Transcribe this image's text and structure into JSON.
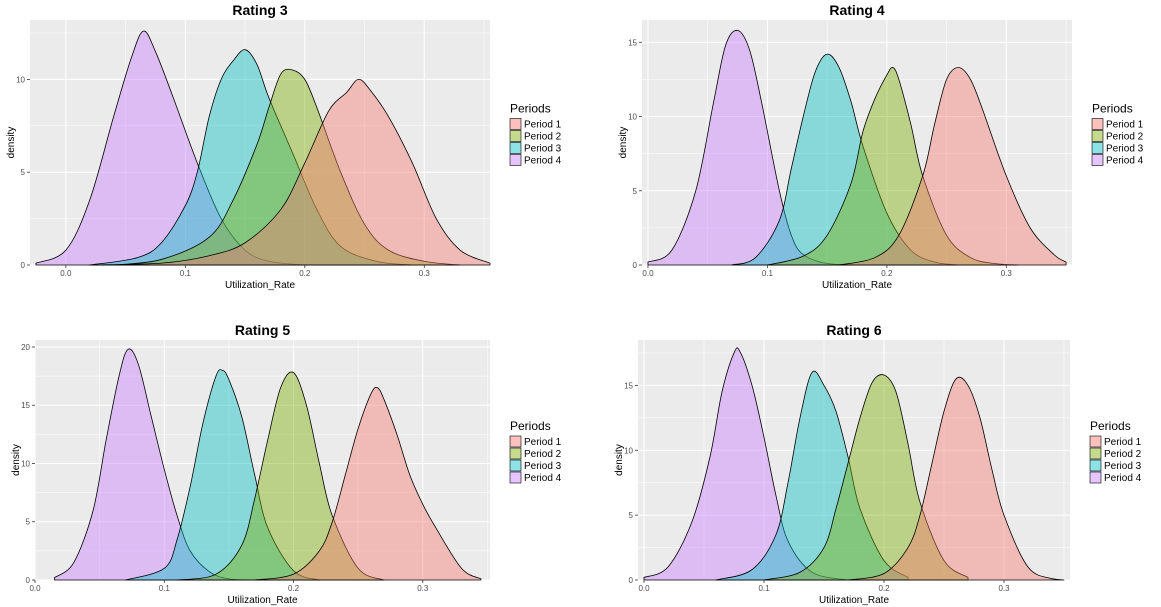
{
  "legend": {
    "title": "Periods",
    "items": [
      "Period 1",
      "Period 2",
      "Period 3",
      "Period 4"
    ]
  },
  "colors": {
    "Period 1": "#F8766D",
    "Period 2": "#7CAE00",
    "Period 3": "#00BFC4",
    "Period 4": "#C77CFF",
    "panel_bg": "#EBEBEB",
    "grid": "#FFFFFF"
  },
  "chart_data": [
    {
      "type": "area",
      "title": "Rating 3",
      "xlabel": "Utilization_Rate",
      "ylabel": "density",
      "xlim": [
        -0.03,
        0.355
      ],
      "ylim": [
        0,
        13.2
      ],
      "x_ticks": [
        0.0,
        0.1,
        0.2,
        0.3
      ],
      "x_tick_labels": [
        "0.0",
        "0.1",
        "0.2",
        "0.3"
      ],
      "y_ticks": [
        0,
        5,
        10
      ],
      "y_tick_labels": [
        "0",
        "5",
        "10"
      ],
      "series": [
        {
          "name": "Period 1",
          "x": [
            0.02,
            0.08,
            0.12,
            0.15,
            0.18,
            0.2,
            0.22,
            0.235,
            0.245,
            0.255,
            0.27,
            0.29,
            0.31,
            0.33,
            0.355
          ],
          "y": [
            0,
            0.1,
            0.5,
            1.2,
            3.0,
            5.5,
            8.3,
            9.3,
            10.0,
            9.4,
            8.0,
            5.5,
            2.5,
            0.8,
            0.1
          ]
        },
        {
          "name": "Period 2",
          "x": [
            0.04,
            0.08,
            0.12,
            0.14,
            0.16,
            0.17,
            0.18,
            0.19,
            0.2,
            0.21,
            0.23,
            0.25,
            0.27,
            0.3,
            0.33
          ],
          "y": [
            0,
            0.3,
            1.5,
            3.5,
            6.5,
            8.5,
            10.3,
            10.5,
            10.0,
            8.5,
            5.0,
            2.2,
            0.8,
            0.2,
            0
          ]
        },
        {
          "name": "Period 3",
          "x": [
            0.02,
            0.06,
            0.08,
            0.1,
            0.11,
            0.12,
            0.13,
            0.14,
            0.15,
            0.16,
            0.17,
            0.19,
            0.21,
            0.23,
            0.26,
            0.29
          ],
          "y": [
            0,
            0.4,
            1.2,
            3.2,
            5.0,
            8.0,
            10.0,
            11.0,
            11.6,
            10.8,
            9.0,
            6.0,
            3.0,
            1.0,
            0.2,
            0
          ]
        },
        {
          "name": "Period 4",
          "x": [
            -0.025,
            0.0,
            0.02,
            0.04,
            0.055,
            0.065,
            0.075,
            0.09,
            0.11,
            0.13,
            0.15,
            0.17,
            0.2
          ],
          "y": [
            0.1,
            0.8,
            3.5,
            8.0,
            11.2,
            12.6,
            11.5,
            9.0,
            5.5,
            2.5,
            0.8,
            0.2,
            0
          ]
        }
      ]
    },
    {
      "type": "area",
      "title": "Rating 4",
      "xlabel": "Utilization_Rate",
      "ylabel": "density",
      "xlim": [
        -0.005,
        0.355
      ],
      "ylim": [
        0,
        16.5
      ],
      "x_ticks": [
        0.0,
        0.1,
        0.2,
        0.3
      ],
      "x_tick_labels": [
        "0.0",
        "0.1",
        "0.2",
        "0.3"
      ],
      "y_ticks": [
        0,
        5,
        10,
        15
      ],
      "y_tick_labels": [
        "0",
        "5",
        "10",
        "15"
      ],
      "series": [
        {
          "name": "Period 1",
          "x": [
            0.16,
            0.19,
            0.21,
            0.23,
            0.24,
            0.25,
            0.26,
            0.27,
            0.28,
            0.3,
            0.32,
            0.34,
            0.35
          ],
          "y": [
            0,
            0.5,
            2.0,
            6.0,
            9.5,
            12.5,
            13.3,
            12.5,
            10.5,
            6.0,
            2.5,
            0.7,
            0.2
          ]
        },
        {
          "name": "Period 2",
          "x": [
            0.1,
            0.13,
            0.15,
            0.17,
            0.18,
            0.19,
            0.2,
            0.205,
            0.21,
            0.22,
            0.23,
            0.25,
            0.27,
            0.29,
            0.31
          ],
          "y": [
            0,
            0.6,
            2.0,
            5.5,
            9.0,
            11.2,
            12.8,
            13.3,
            12.5,
            9.5,
            6.0,
            2.0,
            0.5,
            0.1,
            0
          ]
        },
        {
          "name": "Period 3",
          "x": [
            0.07,
            0.09,
            0.11,
            0.12,
            0.13,
            0.14,
            0.15,
            0.16,
            0.17,
            0.18,
            0.2,
            0.22,
            0.24,
            0.26
          ],
          "y": [
            0,
            0.5,
            3.0,
            6.5,
            10.0,
            13.0,
            14.2,
            13.3,
            11.0,
            8.0,
            3.5,
            1.0,
            0.2,
            0
          ]
        },
        {
          "name": "Period 4",
          "x": [
            0.0,
            0.02,
            0.04,
            0.055,
            0.065,
            0.075,
            0.085,
            0.095,
            0.11,
            0.12,
            0.13,
            0.15,
            0.18
          ],
          "y": [
            0.2,
            1.0,
            5.0,
            11.0,
            14.8,
            15.8,
            14.5,
            11.0,
            5.0,
            2.0,
            0.7,
            0.1,
            0
          ]
        }
      ]
    },
    {
      "type": "area",
      "title": "Rating 5",
      "xlabel": "Utilization_Rate",
      "ylabel": "density",
      "xlim": [
        0.0,
        0.352
      ],
      "ylim": [
        0,
        20.6
      ],
      "x_ticks": [
        0.0,
        0.1,
        0.2,
        0.3
      ],
      "x_tick_labels": [
        "0.0",
        "0.1",
        "0.2",
        "0.3"
      ],
      "y_ticks": [
        0,
        5,
        10,
        15,
        20
      ],
      "y_tick_labels": [
        "0",
        "5",
        "10",
        "15",
        "20"
      ],
      "series": [
        {
          "name": "Period 1",
          "x": [
            0.17,
            0.2,
            0.22,
            0.23,
            0.24,
            0.25,
            0.26,
            0.265,
            0.27,
            0.28,
            0.29,
            0.3,
            0.31,
            0.33,
            0.345
          ],
          "y": [
            0,
            0.5,
            2.5,
            5.0,
            9.0,
            13.0,
            16.0,
            16.5,
            15.5,
            12.5,
            9.0,
            6.5,
            4.5,
            1.0,
            0.1
          ]
        },
        {
          "name": "Period 2",
          "x": [
            0.11,
            0.14,
            0.16,
            0.17,
            0.18,
            0.19,
            0.2,
            0.21,
            0.22,
            0.23,
            0.25,
            0.27
          ],
          "y": [
            0,
            0.5,
            3.0,
            7.0,
            12.0,
            16.5,
            17.8,
            15.0,
            10.0,
            5.5,
            1.0,
            0
          ]
        },
        {
          "name": "Period 3",
          "x": [
            0.07,
            0.1,
            0.11,
            0.12,
            0.13,
            0.14,
            0.145,
            0.15,
            0.16,
            0.17,
            0.18,
            0.2,
            0.22
          ],
          "y": [
            0,
            1.0,
            3.5,
            8.0,
            13.5,
            17.5,
            18.0,
            17.2,
            14.0,
            9.0,
            4.5,
            0.8,
            0
          ]
        },
        {
          "name": "Period 4",
          "x": [
            0.015,
            0.03,
            0.045,
            0.055,
            0.065,
            0.072,
            0.08,
            0.09,
            0.1,
            0.11,
            0.12,
            0.135,
            0.15,
            0.17
          ],
          "y": [
            0.2,
            1.5,
            6.0,
            12.0,
            17.5,
            19.8,
            18.5,
            14.0,
            9.5,
            5.5,
            2.5,
            0.7,
            0.1,
            0
          ]
        }
      ]
    },
    {
      "type": "area",
      "title": "Rating 6",
      "xlabel": "Utilization_Rate",
      "ylabel": "density",
      "xlim": [
        -0.005,
        0.355
      ],
      "ylim": [
        0,
        18.5
      ],
      "x_ticks": [
        0.0,
        0.1,
        0.2,
        0.3
      ],
      "x_tick_labels": [
        "0.0",
        "0.1",
        "0.2",
        "0.3"
      ],
      "y_ticks": [
        0,
        5,
        10,
        15
      ],
      "y_tick_labels": [
        "0",
        "5",
        "10",
        "15"
      ],
      "series": [
        {
          "name": "Period 1",
          "x": [
            0.17,
            0.2,
            0.22,
            0.23,
            0.24,
            0.25,
            0.26,
            0.27,
            0.28,
            0.29,
            0.3,
            0.32,
            0.34,
            0.35
          ],
          "y": [
            0,
            0.5,
            2.5,
            5.0,
            9.0,
            13.0,
            15.5,
            15.0,
            12.5,
            8.5,
            5.0,
            1.0,
            0.1,
            0
          ]
        },
        {
          "name": "Period 2",
          "x": [
            0.1,
            0.13,
            0.15,
            0.16,
            0.17,
            0.18,
            0.19,
            0.2,
            0.21,
            0.22,
            0.23,
            0.25,
            0.27
          ],
          "y": [
            0,
            0.6,
            2.5,
            5.5,
            9.0,
            12.5,
            15.2,
            15.8,
            14.5,
            10.5,
            6.0,
            1.5,
            0.2
          ]
        },
        {
          "name": "Period 3",
          "x": [
            0.06,
            0.09,
            0.11,
            0.12,
            0.13,
            0.14,
            0.15,
            0.16,
            0.17,
            0.18,
            0.2,
            0.22
          ],
          "y": [
            0,
            0.8,
            3.5,
            7.5,
            12.5,
            16.0,
            15.0,
            13.0,
            9.5,
            5.5,
            1.5,
            0.2
          ]
        },
        {
          "name": "Period 4",
          "x": [
            0.0,
            0.02,
            0.04,
            0.055,
            0.065,
            0.075,
            0.08,
            0.09,
            0.1,
            0.11,
            0.12,
            0.14,
            0.17
          ],
          "y": [
            0.2,
            1.0,
            4.5,
            9.5,
            14.5,
            17.5,
            17.6,
            15.0,
            11.0,
            6.5,
            3.0,
            0.6,
            0
          ]
        }
      ]
    }
  ]
}
